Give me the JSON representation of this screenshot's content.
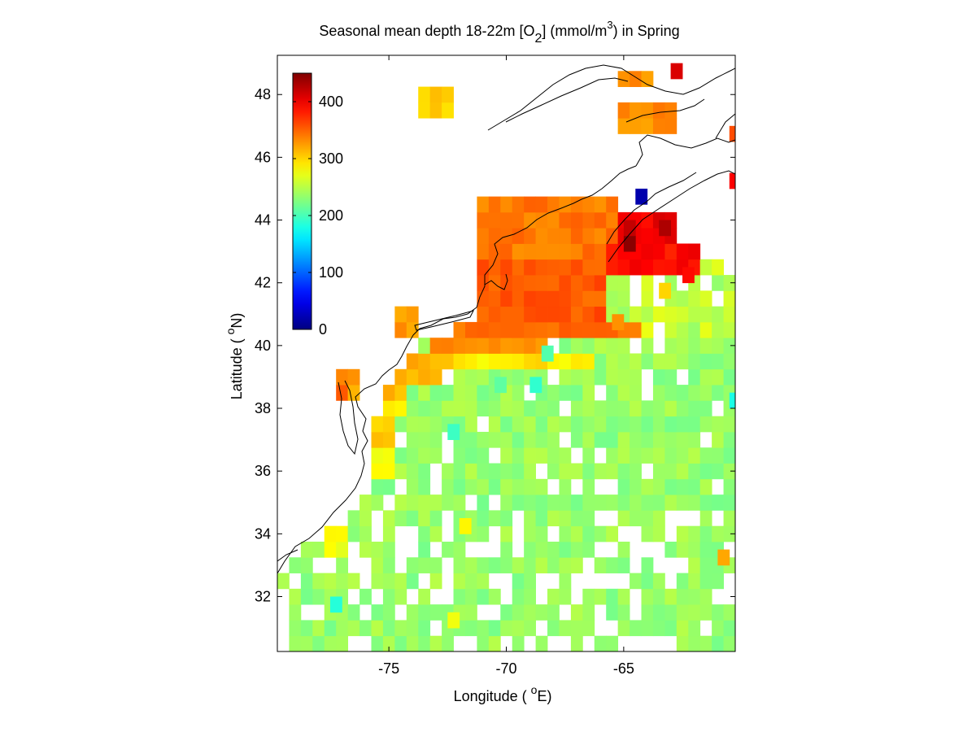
{
  "chart_data": {
    "type": "heatmap",
    "title": {
      "pre": "Seasonal mean depth 18-22m [O",
      "sub": "2",
      "mid": "] (mmol/m",
      "sup": "3",
      "post": ") in  Spring"
    },
    "xlabel": {
      "pre": "Longitude ( ",
      "sup": "o",
      "post": "E)"
    },
    "ylabel": {
      "pre": "Latitude ( ",
      "sup": "o",
      "post": "N)"
    },
    "xlim": [
      -79.75,
      -60.25
    ],
    "ylim": [
      30.25,
      49.25
    ],
    "x_ticks": [
      -75,
      -70,
      -65
    ],
    "x_tick_labels": [
      "-75",
      "-70",
      "-65"
    ],
    "y_ticks": [
      32,
      34,
      36,
      38,
      40,
      42,
      44,
      46,
      48
    ],
    "y_tick_labels": [
      "32",
      "34",
      "36",
      "38",
      "40",
      "42",
      "44",
      "46",
      "48"
    ],
    "colorbar": {
      "range": [
        0,
        450
      ],
      "ticks": [
        0,
        100,
        200,
        300,
        400
      ],
      "tick_labels": [
        "0",
        "100",
        "200",
        "300",
        "400"
      ],
      "colormap": "jet",
      "placement": "inside upper-left"
    },
    "cell_size_deg": 0.5,
    "grid": false,
    "regions": [
      {
        "lat": [
          43,
          45
        ],
        "lon": [
          -71,
          -65
        ],
        "value": 340
      },
      {
        "lat": [
          41,
          43
        ],
        "lon": [
          -71,
          -65.5
        ],
        "value": 355
      },
      {
        "lat": [
          40.5,
          41
        ],
        "lon": [
          -72,
          -64
        ],
        "value": 345
      },
      {
        "lat": [
          40,
          40.5
        ],
        "lon": [
          -73,
          -68
        ],
        "value": 335
      },
      {
        "lat": [
          39.5,
          40
        ],
        "lon": [
          -74,
          -72
        ],
        "value": 320
      },
      {
        "lat": [
          39.5,
          40
        ],
        "lon": [
          -72,
          -66
        ],
        "value": 290
      },
      {
        "lat": [
          39,
          39.5
        ],
        "lon": [
          -74.5,
          -72.5
        ],
        "value": 315
      },
      {
        "lat": [
          38.5,
          39
        ],
        "lon": [
          -75,
          -74
        ],
        "value": 310
      },
      {
        "lat": [
          38,
          38.5
        ],
        "lon": [
          -75,
          -74
        ],
        "value": 295
      },
      {
        "lat": [
          37,
          38
        ],
        "lon": [
          -75.5,
          -74.5
        ],
        "value": 300
      },
      {
        "lat": [
          36,
          37
        ],
        "lon": [
          -75.5,
          -74.5
        ],
        "value": 285
      },
      {
        "lat": [
          33.5,
          34.5
        ],
        "lon": [
          -77.5,
          -76.5
        ],
        "value": 275
      },
      {
        "lat": [
          38.5,
          39.5
        ],
        "lon": [
          -77,
          -76.5
        ],
        "value": 345
      },
      {
        "lat": [
          38.5,
          39.5
        ],
        "lon": [
          -76.5,
          -76
        ],
        "value": 320
      },
      {
        "lat": [
          40.5,
          41.5
        ],
        "lon": [
          -74.5,
          -73.5
        ],
        "value": 330
      },
      {
        "lat": [
          47.5,
          48.5
        ],
        "lon": [
          -73.5,
          -72
        ],
        "value": 305
      },
      {
        "lat": [
          47,
          48
        ],
        "lon": [
          -65,
          -62.5
        ],
        "value": 330
      },
      {
        "lat": [
          48.5,
          49
        ],
        "lon": [
          -65,
          -63.5
        ],
        "value": 330
      },
      {
        "lat": [
          43.5,
          44.5
        ],
        "lon": [
          -65,
          -62.5
        ],
        "value": 400
      },
      {
        "lat": [
          42.5,
          43.5
        ],
        "lon": [
          -65.5,
          -61.5
        ],
        "value": 390
      }
    ],
    "cells": [
      {
        "lat": 43.0,
        "lon": -65.0,
        "value": 445
      },
      {
        "lat": 43.5,
        "lon": -65.0,
        "value": 420
      },
      {
        "lat": 44.5,
        "lon": -64.5,
        "value": 20
      },
      {
        "lat": 43.5,
        "lon": -63.5,
        "value": 430
      },
      {
        "lat": 48.5,
        "lon": -63.0,
        "value": 410
      },
      {
        "lat": 46.5,
        "lon": -60.5,
        "value": 360
      },
      {
        "lat": 45.0,
        "lon": -60.5,
        "value": 395
      },
      {
        "lat": 38.0,
        "lon": -60.5,
        "value": 180
      },
      {
        "lat": 33.0,
        "lon": -61.0,
        "value": 320
      },
      {
        "lat": 42.0,
        "lon": -62.5,
        "value": 390
      },
      {
        "lat": 41.5,
        "lon": -63.5,
        "value": 300
      },
      {
        "lat": 40.5,
        "lon": -65.5,
        "value": 330
      },
      {
        "lat": 37.0,
        "lon": -72.5,
        "value": 195
      },
      {
        "lat": 38.5,
        "lon": -70.5,
        "value": 210
      },
      {
        "lat": 38.5,
        "lon": -69.0,
        "value": 190
      },
      {
        "lat": 39.5,
        "lon": -68.5,
        "value": 205
      },
      {
        "lat": 31.5,
        "lon": -77.5,
        "value": 185
      },
      {
        "lat": 34.0,
        "lon": -72.0,
        "value": 285
      },
      {
        "lat": 31.0,
        "lon": -72.5,
        "value": 275
      }
    ]
  }
}
